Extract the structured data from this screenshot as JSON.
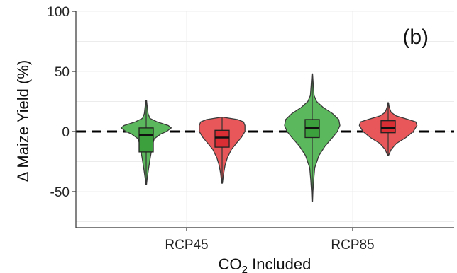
{
  "chart_data": {
    "type": "violin",
    "panel_label": "(b)",
    "xlabel_main": "CO",
    "xlabel_sub": "2",
    "xlabel_rest": " Included",
    "ylabel": "Δ Maize Yield (%)",
    "ylim": [
      -80,
      100
    ],
    "yticks": [
      -50,
      0,
      50,
      100
    ],
    "ytick_labels": [
      "-50",
      "0",
      "50",
      "100"
    ],
    "categories": [
      "RCP45",
      "RCP85"
    ],
    "reference_line": 0,
    "grid": true,
    "series": [
      {
        "fill": "#5cb85c",
        "stroke": "#3a3a3a",
        "box_fill": "#3ca03c",
        "groups": [
          {
            "category": "RCP45",
            "min": -44,
            "max": 26,
            "q1": -17,
            "median": -3,
            "q3": 3,
            "profile": [
              [
                -44,
                1
              ],
              [
                -38,
                3
              ],
              [
                -30,
                7
              ],
              [
                -22,
                11
              ],
              [
                -15,
                15
              ],
              [
                -10,
                18
              ],
              [
                -6,
                22
              ],
              [
                -2,
                40
              ],
              [
                0,
                55
              ],
              [
                3,
                68
              ],
              [
                5,
                60
              ],
              [
                8,
                30
              ],
              [
                11,
                10
              ],
              [
                15,
                5
              ],
              [
                20,
                3
              ],
              [
                26,
                1
              ]
            ]
          },
          {
            "category": "RCP85",
            "min": -58,
            "max": 48,
            "q1": -5,
            "median": 3,
            "q3": 10,
            "profile": [
              [
                -58,
                1
              ],
              [
                -50,
                2
              ],
              [
                -40,
                4
              ],
              [
                -30,
                7
              ],
              [
                -20,
                18
              ],
              [
                -12,
                35
              ],
              [
                -5,
                55
              ],
              [
                0,
                68
              ],
              [
                5,
                75
              ],
              [
                10,
                72
              ],
              [
                15,
                55
              ],
              [
                20,
                30
              ],
              [
                25,
                12
              ],
              [
                30,
                5
              ],
              [
                38,
                3
              ],
              [
                48,
                1
              ]
            ]
          }
        ]
      },
      {
        "fill": "#e8585a",
        "stroke": "#3a3a3a",
        "box_fill": "#d92e34",
        "groups": [
          {
            "category": "RCP45",
            "min": -43,
            "max": 12,
            "q1": -13,
            "median": -5,
            "q3": 1,
            "profile": [
              [
                -43,
                1
              ],
              [
                -35,
                4
              ],
              [
                -28,
                8
              ],
              [
                -22,
                14
              ],
              [
                -15,
                25
              ],
              [
                -10,
                38
              ],
              [
                -5,
                52
              ],
              [
                0,
                62
              ],
              [
                5,
                62
              ],
              [
                8,
                58
              ],
              [
                10,
                42
              ],
              [
                12,
                1
              ]
            ]
          },
          {
            "category": "RCP85",
            "min": -20,
            "max": 24,
            "q1": -1,
            "median": 3,
            "q3": 9,
            "profile": [
              [
                -20,
                1
              ],
              [
                -15,
                8
              ],
              [
                -10,
                22
              ],
              [
                -5,
                48
              ],
              [
                0,
                68
              ],
              [
                5,
                78
              ],
              [
                8,
                75
              ],
              [
                10,
                55
              ],
              [
                13,
                22
              ],
              [
                16,
                8
              ],
              [
                20,
                3
              ],
              [
                24,
                1
              ]
            ]
          }
        ]
      }
    ]
  }
}
